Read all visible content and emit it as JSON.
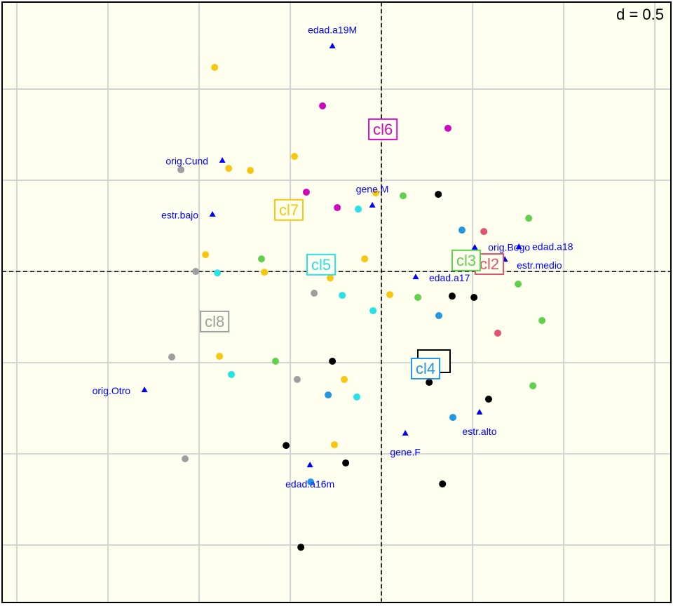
{
  "chart_data": {
    "type": "scatter",
    "d_label": "d = 0.5",
    "xlim": [
      -2.081,
      1.588
    ],
    "ylim": [
      -1.815,
      1.477
    ],
    "xticks": [
      -2,
      -1.5,
      -1,
      -0.5,
      0,
      0.5,
      1,
      1.5
    ],
    "yticks": [
      -1.5,
      -1,
      -0.5,
      0,
      0.5,
      1
    ],
    "grid": true,
    "series": [
      {
        "color": "#000000",
        "centroid": [
          0.288,
          -0.492
        ],
        "x": [
          0.312,
          0.388,
          0.508,
          -0.269,
          0.262,
          0.588,
          -0.523,
          -0.196,
          0.335,
          -0.442
        ],
        "y": [
          0.423,
          -0.135,
          -0.142,
          -0.492,
          -0.608,
          -0.7,
          -0.954,
          -1.05,
          -1.165,
          -1.512
        ]
      },
      {
        "name": "cl2",
        "color": "#DF536B",
        "centroid": [
          0.592,
          0.038
        ],
        "x": [
          0.562,
          0.638
        ],
        "y": [
          0.219,
          -0.338
        ]
      },
      {
        "name": "cl3",
        "color": "#61D04F",
        "centroid": [
          0.465,
          0.058
        ],
        "x": [
          0.119,
          0.808,
          -0.658,
          0.75,
          0.2,
          0.881,
          -0.581,
          0.831
        ],
        "y": [
          0.415,
          0.292,
          0.069,
          -0.069,
          -0.142,
          -0.269,
          -0.492,
          -0.627
        ]
      },
      {
        "name": "cl4",
        "color": "#2297E6",
        "centroid": [
          0.242,
          -0.535
        ],
        "x": [
          0.442,
          0.315,
          -0.292,
          0.392,
          -0.388
        ],
        "y": [
          0.227,
          -0.242,
          -0.677,
          -0.8,
          -1.154
        ]
      },
      {
        "name": "cl5",
        "color": "#28E2E5",
        "centroid": [
          -0.331,
          0.035
        ],
        "x": [
          -0.127,
          -0.9,
          -0.215,
          -0.046,
          -0.823,
          -0.135
        ],
        "y": [
          0.342,
          -0.008,
          -0.131,
          -0.215,
          -0.565,
          -0.688
        ]
      },
      {
        "name": "cl6",
        "color": "#CD0BBC",
        "centroid": [
          0.008,
          0.777
        ],
        "x": [
          -0.323,
          0.365,
          -0.412,
          -0.242
        ],
        "y": [
          0.908,
          0.785,
          0.435,
          0.35
        ]
      },
      {
        "name": "cl7",
        "color": "#F5C710",
        "centroid": [
          -0.508,
          0.335
        ],
        "x": [
          -0.915,
          -0.477,
          -0.838,
          -0.719,
          -0.031,
          -0.965,
          -0.092,
          -0.642,
          -0.281,
          0.046,
          -0.888,
          -0.204,
          -0.258
        ],
        "y": [
          1.119,
          0.631,
          0.565,
          0.554,
          0.431,
          0.092,
          0.069,
          -0.004,
          -0.035,
          -0.127,
          -0.465,
          -0.592,
          -0.95
        ]
      },
      {
        "name": "cl8",
        "color": "#9E9E9E",
        "centroid": [
          -0.915,
          -0.277
        ],
        "x": [
          -1.1,
          -1.019,
          -0.369,
          -1.15,
          -0.462,
          -1.077
        ],
        "y": [
          0.558,
          0,
          -0.119,
          -0.469,
          -0.592,
          -1.027
        ]
      }
    ],
    "variables": {
      "color": "#0000FF",
      "labels": [
        "edad.a19M",
        "orig.Cund",
        "estr.bajo",
        "gene.M",
        "orig.Bogo",
        "edad.a18",
        "estr.medio",
        "edad.a17",
        "orig.Otro",
        "estr.alto",
        "gene.F",
        "edad.a16m"
      ],
      "x": [
        -0.269,
        -0.873,
        -0.927,
        -0.05,
        0.512,
        0.754,
        0.677,
        0.188,
        -1.3,
        0.538,
        0.131,
        -0.392
      ],
      "y": [
        1.235,
        0.608,
        0.312,
        0.362,
        0.131,
        0.135,
        0.065,
        -0.031,
        -0.65,
        -0.773,
        -0.888,
        -1.062
      ]
    }
  }
}
